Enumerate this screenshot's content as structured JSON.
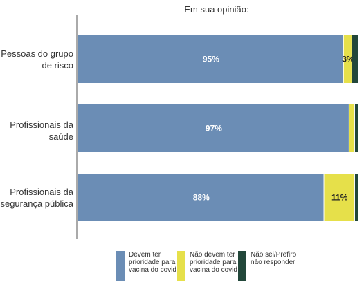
{
  "chart_data": {
    "type": "bar",
    "orientation": "horizontal",
    "stacked": true,
    "title": "Em sua opinião:",
    "categories": [
      "Pessoas do grupo de risco",
      "Profissionais da saúde",
      "Profissionais da segurança pública"
    ],
    "series": [
      {
        "name": "Devem ter prioridade para a vacina do covid",
        "values": [
          95,
          97,
          88
        ],
        "labels": [
          "95%",
          "97%",
          "88%"
        ],
        "color": "#6B8DB5"
      },
      {
        "name": "Não devem ter prioridade para a vacina do covid",
        "values": [
          3,
          2,
          11
        ],
        "labels": [
          "3%",
          "",
          "11%"
        ],
        "color": "#E6E04A"
      },
      {
        "name": "Não sei/Prefiro não responder",
        "values": [
          2,
          1,
          1
        ],
        "labels": [
          "",
          "",
          ""
        ],
        "color": "#22473A"
      }
    ],
    "xlim": [
      0,
      100
    ],
    "grid": false,
    "legend_position": "bottom"
  }
}
